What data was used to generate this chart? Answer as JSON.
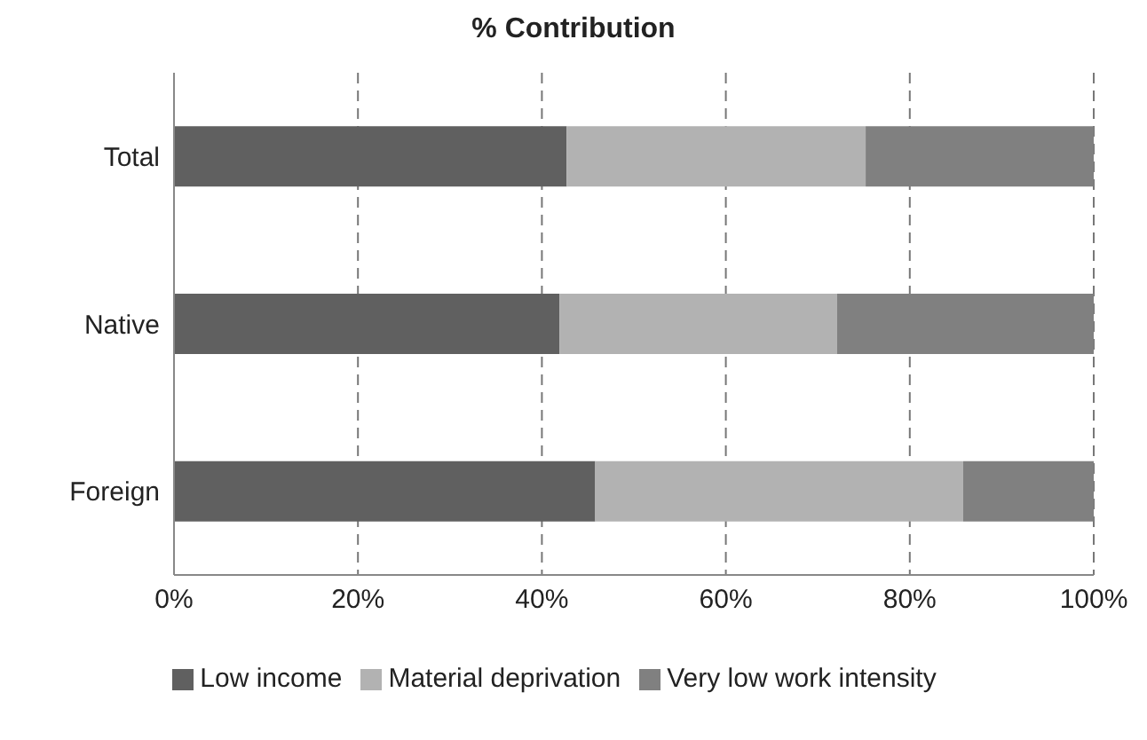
{
  "chart_data": {
    "type": "bar",
    "title": "% Contribution",
    "orientation": "horizontal",
    "stacked": true,
    "categories": [
      "Total",
      "Native",
      "Foreign"
    ],
    "series": [
      {
        "name": "Low income",
        "color": "#606060",
        "values": [
          42.7,
          41.9,
          45.8
        ]
      },
      {
        "name": "Material deprivation",
        "color": "#b2b2b2",
        "values": [
          32.5,
          30.2,
          40.0
        ]
      },
      {
        "name": "Very low work intensity",
        "color": "#808080",
        "values": [
          24.8,
          27.9,
          14.2
        ]
      }
    ],
    "xlim": [
      0,
      100
    ],
    "xticks": [
      {
        "value": 0,
        "label": "0%"
      },
      {
        "value": 20,
        "label": "20%"
      },
      {
        "value": 40,
        "label": "40%"
      },
      {
        "value": 60,
        "label": "60%"
      },
      {
        "value": 80,
        "label": "80%"
      },
      {
        "value": 100,
        "label": "100%"
      }
    ],
    "grid": "x",
    "legend": "bottom"
  }
}
